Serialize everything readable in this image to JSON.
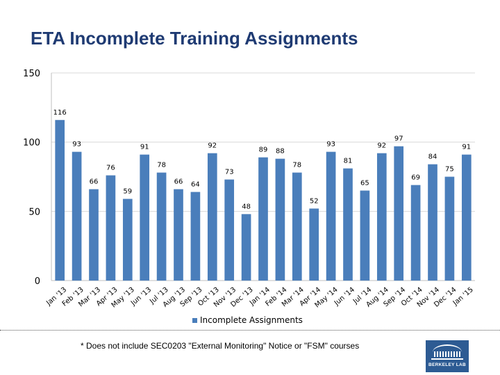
{
  "page": {
    "title": "ETA Incomplete Training Assignments",
    "footnote": "* Does not include SEC0203 \"External Monitoring\" Notice or \"FSM\" courses",
    "logo_text": "BERKELEY LAB"
  },
  "colors": {
    "bar": "#4a7ebb",
    "grid": "#d9d9d9",
    "axis_text": "#000000",
    "title": "#1f3b73"
  },
  "chart_data": {
    "type": "bar",
    "title": "ETA Incomplete Training Assignments",
    "xlabel": "",
    "ylabel": "",
    "ylim": [
      0,
      150
    ],
    "yticks": [
      0,
      50,
      100,
      150
    ],
    "grid": true,
    "legend_position": "bottom",
    "categories": [
      "Jan '13",
      "Feb '13",
      "Mar '13",
      "Apr '13",
      "May '13",
      "Jun '13",
      "Jul '13",
      "Aug '13",
      "Sep '13",
      "Oct '13",
      "Nov '13",
      "Dec '13",
      "Jan '14",
      "Feb '14",
      "Mar '14",
      "Apr '14",
      "May '14",
      "Jun '14",
      "Jul '14",
      "Aug '14",
      "Sep '14",
      "Oct '14",
      "Nov '14",
      "Dec '14",
      "Jan '15"
    ],
    "series": [
      {
        "name": "Incomplete Assignments",
        "values": [
          116,
          93,
          66,
          76,
          59,
          91,
          78,
          66,
          64,
          92,
          73,
          48,
          89,
          88,
          78,
          52,
          93,
          81,
          65,
          92,
          97,
          69,
          84,
          75,
          91
        ]
      }
    ]
  }
}
